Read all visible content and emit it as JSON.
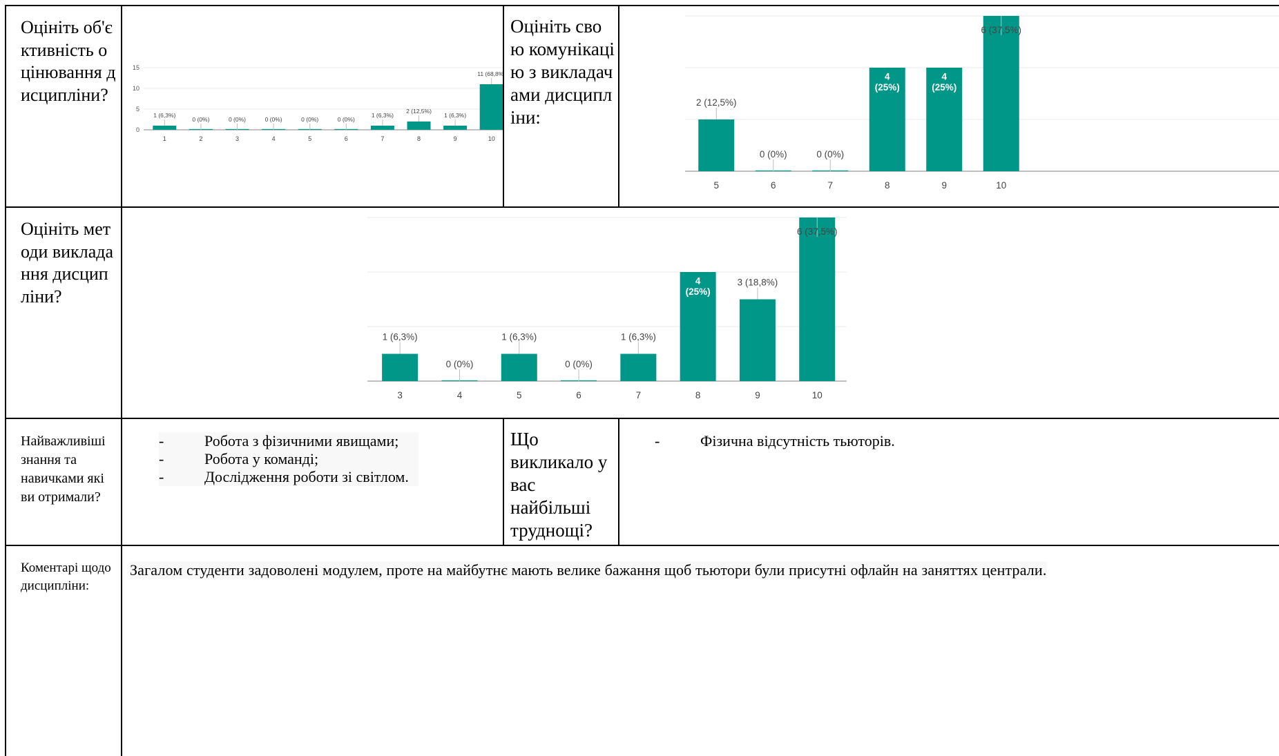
{
  "table": {
    "row1": {
      "q1_label": "Оцініть об'єктивність оцінювання дисципліни?",
      "q2_label": "Оцініть свою комунікацію з викладачами дисципліни:"
    },
    "row2": {
      "q3_label": "Оцініть методи викладання дисципліни?"
    },
    "row3": {
      "knowledge_label": "Найважливіші знання та навичками які ви отримали?",
      "knowledge_items": [
        "Робота з фізичними явищами;",
        "Робота у команді;",
        "Дослідження роботи зі світлом."
      ],
      "difficulty_label": "Що викликало у вас найбільші труднощі?",
      "difficulty_items": [
        "Фізична відсутність тьюторів."
      ],
      "bullet_marker": "-"
    },
    "row4": {
      "comments_label": "Коментарі щодо дисципліни:",
      "comments_text": "Загалом студенти задоволені модулем, проте на майбутнє мають велике бажання щоб тьютори були присутні офлайн на заняттях централи."
    }
  },
  "chart_data": [
    {
      "type": "bar",
      "categories": [
        "1",
        "2",
        "3",
        "4",
        "5",
        "6",
        "7",
        "8",
        "9",
        "10"
      ],
      "values": [
        1,
        0,
        0,
        0,
        0,
        0,
        1,
        2,
        1,
        11
      ],
      "data_labels": [
        "1 (6,3%)",
        "0 (0%)",
        "0 (0%)",
        "0 (0%)",
        "0 (0%)",
        "0 (0%)",
        "1 (6,3%)",
        "2 (12,5%)",
        "1 (6,3%)",
        "11 (68,8%)"
      ],
      "yticks": [
        "0",
        "5",
        "10",
        "15"
      ],
      "ylim": [
        0,
        15
      ],
      "grid": true,
      "color": "#009688"
    },
    {
      "type": "bar",
      "categories": [
        "5",
        "6",
        "7",
        "8",
        "9",
        "10"
      ],
      "values": [
        2,
        0,
        0,
        4,
        4,
        6
      ],
      "data_labels": [
        "2 (12,5%)",
        "0 (0%)",
        "0 (0%)",
        "4\n(25%)",
        "4\n(25%)",
        "6 (37,5%)"
      ],
      "grid": true,
      "color": "#009688"
    },
    {
      "type": "bar",
      "categories": [
        "3",
        "4",
        "5",
        "6",
        "7",
        "8",
        "9",
        "10"
      ],
      "values": [
        1,
        0,
        1,
        0,
        1,
        4,
        3,
        6
      ],
      "data_labels": [
        "1 (6,3%)",
        "0 (0%)",
        "1 (6,3%)",
        "0 (0%)",
        "1 (6,3%)",
        "4\n(25%)",
        "3 (18,8%)",
        "6 (37,5%)"
      ],
      "grid": true,
      "color": "#009688"
    }
  ]
}
